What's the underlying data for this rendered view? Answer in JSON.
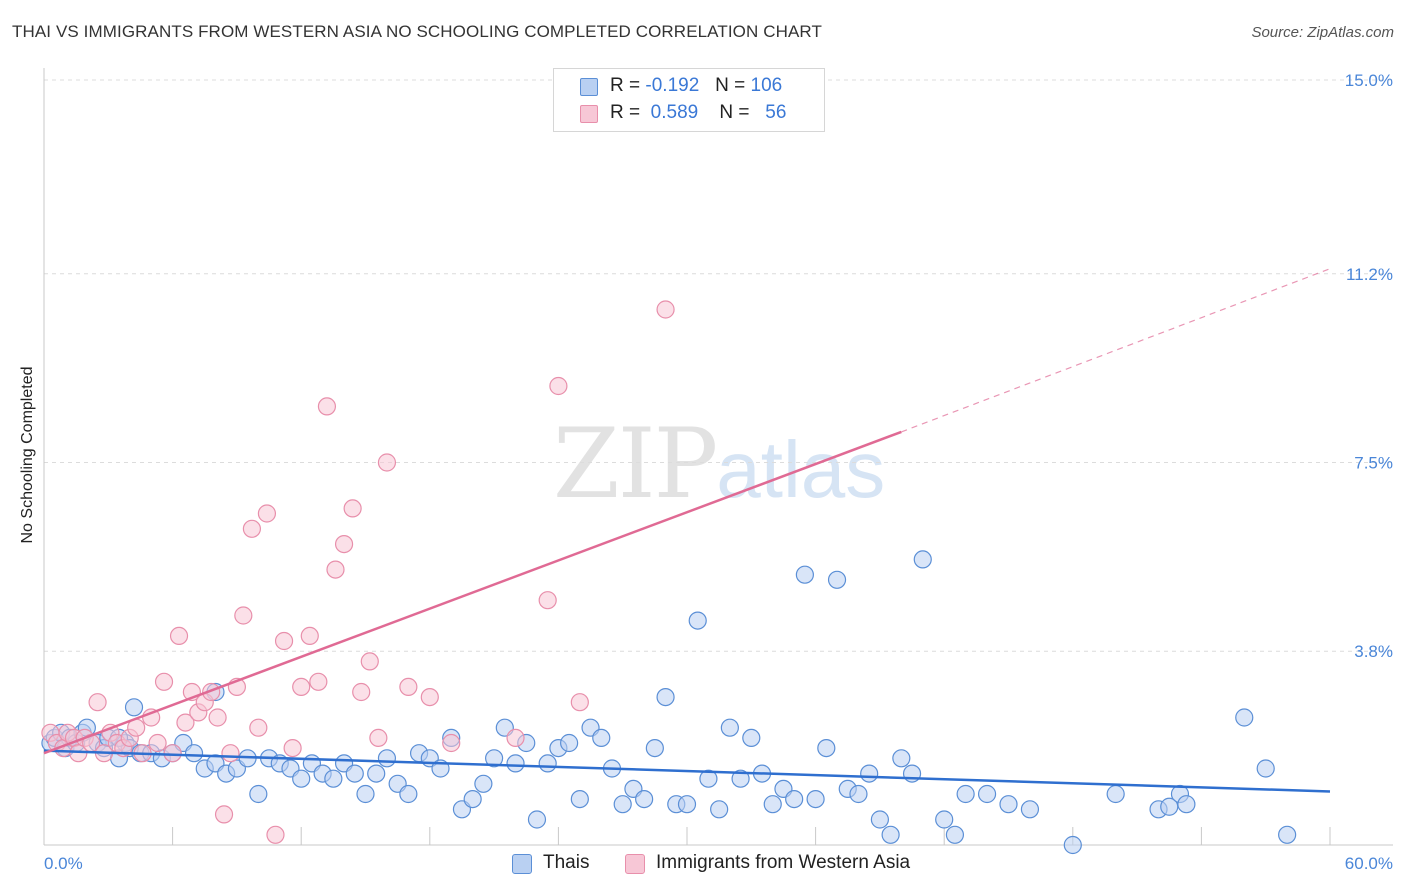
{
  "chart_data": {
    "type": "scatter",
    "title": "THAI VS IMMIGRANTS FROM WESTERN ASIA NO SCHOOLING COMPLETED CORRELATION CHART",
    "source": "Source: ZipAtlas.com",
    "ylabel": "No Schooling Completed",
    "xlabel": "",
    "xlim": [
      0,
      60
    ],
    "ylim": [
      0,
      15
    ],
    "x_tick_labels": [
      "0.0%",
      "60.0%"
    ],
    "y_ticks": [
      3.8,
      7.5,
      11.2,
      15.0
    ],
    "y_tick_labels": [
      "3.8%",
      "7.5%",
      "11.2%",
      "15.0%"
    ],
    "watermark": {
      "zip": "ZIP",
      "atlas": "atlas"
    },
    "legend": {
      "r_label": "R =",
      "n_label": "N =",
      "rows": [
        {
          "r": "-0.192",
          "n": "106"
        },
        {
          "r": "0.589",
          "n": "56"
        }
      ]
    },
    "series": [
      {
        "name": "Thais",
        "color": "#5b8fd6",
        "fill": "#b9d0f2",
        "trend": {
          "x0": 0,
          "y0": 1.85,
          "x1": 60,
          "y1": 1.05,
          "color": "#2f6fcf"
        },
        "points": [
          [
            0.3,
            2.0
          ],
          [
            0.5,
            2.1
          ],
          [
            0.8,
            2.2
          ],
          [
            1.0,
            1.9
          ],
          [
            1.2,
            2.1
          ],
          [
            1.5,
            2.0
          ],
          [
            1.8,
            2.2
          ],
          [
            2.0,
            2.3
          ],
          [
            2.5,
            2.0
          ],
          [
            2.8,
            1.9
          ],
          [
            3.0,
            2.1
          ],
          [
            3.5,
            1.7
          ],
          [
            3.8,
            2.0
          ],
          [
            4.0,
            1.9
          ],
          [
            4.2,
            2.7
          ],
          [
            4.5,
            1.8
          ],
          [
            5.0,
            1.8
          ],
          [
            5.5,
            1.7
          ],
          [
            6.0,
            1.8
          ],
          [
            6.5,
            2.0
          ],
          [
            7.0,
            1.8
          ],
          [
            7.5,
            1.5
          ],
          [
            8.0,
            1.6
          ],
          [
            8.5,
            1.4
          ],
          [
            9.0,
            1.5
          ],
          [
            9.5,
            1.7
          ],
          [
            10.0,
            1.0
          ],
          [
            10.5,
            1.7
          ],
          [
            11.0,
            1.6
          ],
          [
            11.5,
            1.5
          ],
          [
            12.0,
            1.3
          ],
          [
            12.5,
            1.6
          ],
          [
            13.0,
            1.4
          ],
          [
            13.5,
            1.3
          ],
          [
            14.0,
            1.6
          ],
          [
            14.5,
            1.4
          ],
          [
            15.0,
            1.0
          ],
          [
            15.5,
            1.4
          ],
          [
            16.0,
            1.7
          ],
          [
            16.5,
            1.2
          ],
          [
            17.0,
            1.0
          ],
          [
            17.5,
            1.8
          ],
          [
            18.0,
            1.7
          ],
          [
            18.5,
            1.5
          ],
          [
            19.0,
            2.1
          ],
          [
            19.5,
            0.7
          ],
          [
            20.0,
            0.9
          ],
          [
            20.5,
            1.2
          ],
          [
            21.0,
            1.7
          ],
          [
            21.5,
            2.3
          ],
          [
            22.0,
            1.6
          ],
          [
            22.5,
            2.0
          ],
          [
            23.0,
            0.5
          ],
          [
            23.5,
            1.6
          ],
          [
            24.0,
            1.9
          ],
          [
            24.5,
            2.0
          ],
          [
            25.0,
            0.9
          ],
          [
            25.5,
            2.3
          ],
          [
            26.0,
            2.1
          ],
          [
            26.5,
            1.5
          ],
          [
            27.0,
            0.8
          ],
          [
            27.5,
            1.1
          ],
          [
            28.0,
            0.9
          ],
          [
            28.5,
            1.9
          ],
          [
            29.0,
            2.9
          ],
          [
            29.5,
            0.8
          ],
          [
            30.0,
            0.8
          ],
          [
            30.5,
            4.4
          ],
          [
            31.0,
            1.3
          ],
          [
            31.5,
            0.7
          ],
          [
            32.0,
            2.3
          ],
          [
            32.5,
            1.3
          ],
          [
            33.0,
            2.1
          ],
          [
            33.5,
            1.4
          ],
          [
            34.0,
            0.8
          ],
          [
            34.5,
            1.1
          ],
          [
            35.0,
            0.9
          ],
          [
            35.5,
            5.3
          ],
          [
            36.0,
            0.9
          ],
          [
            36.5,
            1.9
          ],
          [
            37.0,
            5.2
          ],
          [
            37.5,
            1.1
          ],
          [
            38.0,
            1.0
          ],
          [
            38.5,
            1.4
          ],
          [
            39.0,
            0.5
          ],
          [
            39.5,
            0.2
          ],
          [
            40.0,
            1.7
          ],
          [
            40.5,
            1.4
          ],
          [
            41.0,
            5.6
          ],
          [
            42.0,
            0.5
          ],
          [
            42.5,
            0.2
          ],
          [
            43.0,
            1.0
          ],
          [
            44.0,
            1.0
          ],
          [
            45.0,
            0.8
          ],
          [
            46.0,
            0.7
          ],
          [
            48.0,
            0.0
          ],
          [
            50.0,
            1.0
          ],
          [
            52.0,
            0.7
          ],
          [
            52.5,
            0.75
          ],
          [
            53.0,
            1.0
          ],
          [
            53.3,
            0.8
          ],
          [
            56.0,
            2.5
          ],
          [
            57.0,
            1.5
          ],
          [
            58.0,
            0.2
          ],
          [
            8.0,
            3.0
          ],
          [
            3.5,
            2.1
          ]
        ]
      },
      {
        "name": "Immigrants from Western Asia",
        "color": "#e88fab",
        "fill": "#f7c7d6",
        "trend": {
          "x0": 0,
          "y0": 1.8,
          "x1": 40,
          "y1": 8.1,
          "x2": 60,
          "y2": 11.3,
          "color": "#e06a94"
        },
        "points": [
          [
            0.3,
            2.2
          ],
          [
            0.6,
            2.0
          ],
          [
            0.9,
            1.9
          ],
          [
            1.1,
            2.2
          ],
          [
            1.4,
            2.1
          ],
          [
            1.6,
            1.8
          ],
          [
            1.9,
            2.1
          ],
          [
            2.2,
            2.0
          ],
          [
            2.5,
            2.8
          ],
          [
            2.8,
            1.8
          ],
          [
            3.1,
            2.2
          ],
          [
            3.4,
            2.0
          ],
          [
            3.7,
            1.9
          ],
          [
            4.0,
            2.1
          ],
          [
            4.3,
            2.3
          ],
          [
            4.6,
            1.8
          ],
          [
            5.0,
            2.5
          ],
          [
            5.3,
            2.0
          ],
          [
            5.6,
            3.2
          ],
          [
            6.0,
            1.8
          ],
          [
            6.3,
            4.1
          ],
          [
            6.6,
            2.4
          ],
          [
            6.9,
            3.0
          ],
          [
            7.2,
            2.6
          ],
          [
            7.5,
            2.8
          ],
          [
            7.8,
            3.0
          ],
          [
            8.1,
            2.5
          ],
          [
            8.4,
            0.6
          ],
          [
            8.7,
            1.8
          ],
          [
            9.0,
            3.1
          ],
          [
            9.3,
            4.5
          ],
          [
            9.7,
            6.2
          ],
          [
            10.0,
            2.3
          ],
          [
            10.4,
            6.5
          ],
          [
            10.8,
            0.2
          ],
          [
            11.2,
            4.0
          ],
          [
            11.6,
            1.9
          ],
          [
            12.0,
            3.1
          ],
          [
            12.4,
            4.1
          ],
          [
            12.8,
            3.2
          ],
          [
            13.2,
            8.6
          ],
          [
            13.6,
            5.4
          ],
          [
            14.0,
            5.9
          ],
          [
            14.4,
            6.6
          ],
          [
            14.8,
            3.0
          ],
          [
            15.2,
            3.6
          ],
          [
            15.6,
            2.1
          ],
          [
            16.0,
            7.5
          ],
          [
            17.0,
            3.1
          ],
          [
            18.0,
            2.9
          ],
          [
            19.0,
            2.0
          ],
          [
            22.0,
            2.1
          ],
          [
            23.5,
            4.8
          ],
          [
            24.0,
            9.0
          ],
          [
            25.0,
            2.8
          ],
          [
            29.0,
            10.5
          ]
        ]
      }
    ]
  }
}
